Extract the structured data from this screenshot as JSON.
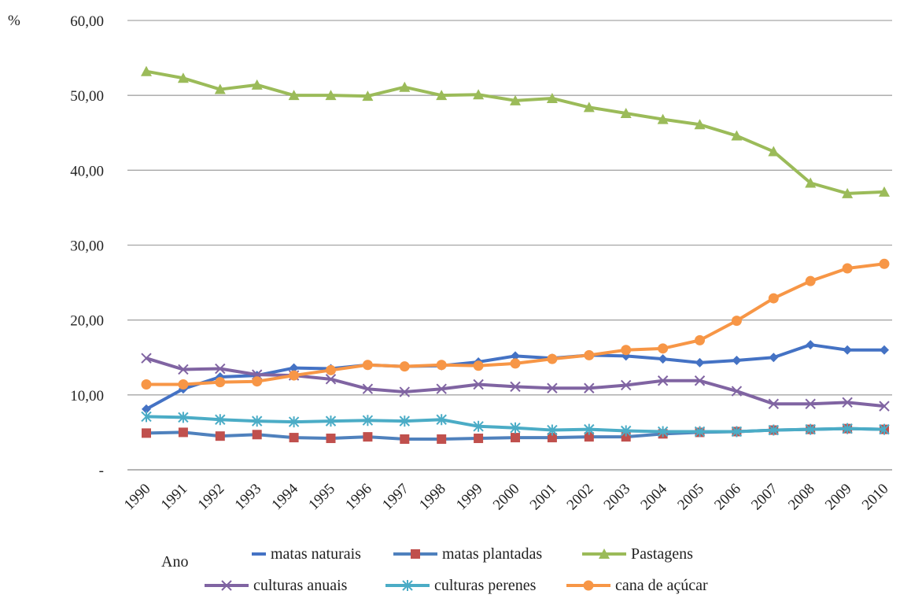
{
  "chart_data": {
    "type": "line",
    "ylabel": "%",
    "xlabel": "Ano",
    "ylim": [
      0,
      60
    ],
    "yticks": [
      0,
      10,
      20,
      30,
      40,
      50,
      60
    ],
    "ytick_labels": [
      "-",
      "10,00",
      "20,00",
      "30,00",
      "40,00",
      "50,00",
      "60,00"
    ],
    "grid": true,
    "legend_position": "bottom",
    "categories": [
      "1990",
      "1991",
      "1992",
      "1993",
      "1994",
      "1995",
      "1996",
      "1997",
      "1998",
      "1999",
      "2000",
      "2001",
      "2002",
      "2003",
      "2004",
      "2005",
      "2006",
      "2007",
      "2008",
      "2009",
      "2010"
    ],
    "series": [
      {
        "name": "matas naturais",
        "color": "#4472C4",
        "marker": "diamond",
        "values": [
          8.1,
          10.8,
          12.4,
          12.6,
          13.6,
          13.5,
          14.0,
          13.8,
          13.9,
          14.4,
          15.2,
          14.9,
          15.3,
          15.2,
          14.8,
          14.3,
          14.6,
          15.0,
          16.7,
          16.0,
          16.0
        ]
      },
      {
        "name": "matas plantadas",
        "color": "#C0504D",
        "line_color": "#4F81BD",
        "marker": "square",
        "values": [
          4.9,
          5.0,
          4.5,
          4.7,
          4.3,
          4.2,
          4.4,
          4.1,
          4.1,
          4.2,
          4.3,
          4.3,
          4.4,
          4.4,
          4.8,
          5.0,
          5.1,
          5.3,
          5.4,
          5.5,
          5.4
        ]
      },
      {
        "name": "Pastagens",
        "color": "#9BBB59",
        "marker": "triangle",
        "values": [
          53.2,
          52.3,
          50.8,
          51.4,
          50.0,
          50.0,
          49.9,
          51.1,
          50.0,
          50.1,
          49.3,
          49.6,
          48.4,
          47.6,
          46.8,
          46.1,
          44.6,
          42.5,
          38.3,
          36.9,
          37.1
        ]
      },
      {
        "name": "culturas anuais",
        "color": "#8064A2",
        "marker": "x",
        "values": [
          14.9,
          13.4,
          13.5,
          12.7,
          12.6,
          12.1,
          10.8,
          10.4,
          10.8,
          11.4,
          11.1,
          10.9,
          10.9,
          11.3,
          11.9,
          11.9,
          10.5,
          8.8,
          8.8,
          9.0,
          8.5
        ]
      },
      {
        "name": "culturas perenes",
        "color": "#4BACC6",
        "marker": "star",
        "values": [
          7.1,
          7.0,
          6.7,
          6.5,
          6.4,
          6.5,
          6.6,
          6.5,
          6.7,
          5.8,
          5.6,
          5.3,
          5.4,
          5.2,
          5.1,
          5.1,
          5.1,
          5.3,
          5.4,
          5.5,
          5.4
        ]
      },
      {
        "name": "cana de açúcar",
        "color": "#F79646",
        "marker": "circle",
        "values": [
          11.4,
          11.4,
          11.7,
          11.8,
          12.6,
          13.3,
          14.0,
          13.8,
          14.0,
          13.9,
          14.2,
          14.8,
          15.3,
          16.0,
          16.2,
          17.3,
          19.9,
          22.9,
          25.2,
          26.9,
          27.5
        ]
      }
    ]
  }
}
